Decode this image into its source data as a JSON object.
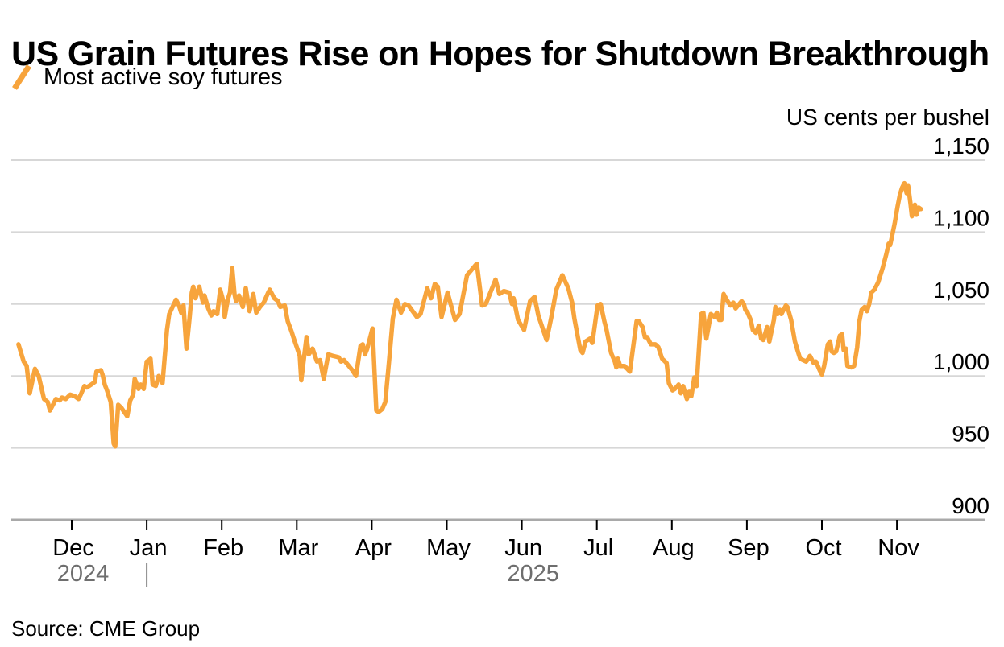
{
  "header": {
    "title": "US Grain Futures Rise on Hopes for Shutdown Breakthrough",
    "legend": {
      "label": "Most active soy futures",
      "swatch": "orange-slash-icon",
      "color": "#F7A43C"
    }
  },
  "footer": {
    "source": "Source: CME Group"
  },
  "colors": {
    "line": "#F7A43C",
    "grid": "#d7d7d7",
    "axis_baseline": "#a9a9a9",
    "year_text": "#6e6e6e",
    "text": "#000000"
  },
  "chart_data": {
    "type": "line",
    "title": "US Grain Futures Rise on Hopes for Shutdown Breakthrough",
    "ylabel": "US cents per bushel",
    "xlabel": "",
    "ylim": [
      900,
      1150
    ],
    "y_ticks": [
      1150,
      1100,
      1050,
      1000,
      950,
      900
    ],
    "grid": "horizontal",
    "legend_position": "top-left",
    "x_unit": "month offset along axis: 0 = Dec 2024 tick, 11 = Nov 2025 tick (fractional = days within month)",
    "x_tick_labels": [
      "Dec",
      "Jan",
      "Feb",
      "Mar",
      "Apr",
      "May",
      "Jun",
      "Jul",
      "Aug",
      "Sep",
      "Oct",
      "Nov"
    ],
    "x_year_labels": [
      {
        "label": "2024",
        "month_index": 0
      },
      {
        "label": "2025",
        "month_index": 6
      }
    ],
    "year_separator_month_index": 1,
    "series": [
      {
        "name": "Most active soy futures",
        "color": "#F7A43C",
        "points": [
          [
            -0.71,
            1022
          ],
          [
            -0.64,
            1010
          ],
          [
            -0.6,
            1007
          ],
          [
            -0.56,
            988
          ],
          [
            -0.49,
            1005
          ],
          [
            -0.44,
            1000
          ],
          [
            -0.37,
            984
          ],
          [
            -0.32,
            982
          ],
          [
            -0.29,
            976
          ],
          [
            -0.21,
            984
          ],
          [
            -0.16,
            983
          ],
          [
            -0.13,
            985
          ],
          [
            -0.08,
            984
          ],
          [
            -0.02,
            987
          ],
          [
            0.04,
            986
          ],
          [
            0.09,
            984
          ],
          [
            0.12,
            987
          ],
          [
            0.17,
            993
          ],
          [
            0.2,
            992
          ],
          [
            0.26,
            994
          ],
          [
            0.31,
            996
          ],
          [
            0.33,
            1003
          ],
          [
            0.39,
            1004
          ],
          [
            0.41,
            1001
          ],
          [
            0.44,
            994
          ],
          [
            0.47,
            990
          ],
          [
            0.52,
            982
          ],
          [
            0.56,
            953
          ],
          [
            0.58,
            951
          ],
          [
            0.62,
            980
          ],
          [
            0.66,
            978
          ],
          [
            0.7,
            975
          ],
          [
            0.74,
            972
          ],
          [
            0.78,
            983
          ],
          [
            0.82,
            987
          ],
          [
            0.84,
            998
          ],
          [
            0.89,
            991
          ],
          [
            0.92,
            994
          ],
          [
            0.96,
            991
          ],
          [
            1.0,
            1010
          ],
          [
            1.03,
            1011
          ],
          [
            1.05,
            1012
          ],
          [
            1.08,
            994
          ],
          [
            1.12,
            993
          ],
          [
            1.16,
            1000
          ],
          [
            1.21,
            995
          ],
          [
            1.27,
            1032
          ],
          [
            1.3,
            1043
          ],
          [
            1.39,
            1053
          ],
          [
            1.43,
            1049
          ],
          [
            1.46,
            1044
          ],
          [
            1.49,
            1049
          ],
          [
            1.53,
            1019
          ],
          [
            1.57,
            1040
          ],
          [
            1.6,
            1058
          ],
          [
            1.62,
            1062
          ],
          [
            1.65,
            1054
          ],
          [
            1.7,
            1062
          ],
          [
            1.75,
            1051
          ],
          [
            1.77,
            1056
          ],
          [
            1.82,
            1047
          ],
          [
            1.86,
            1042
          ],
          [
            1.89,
            1045
          ],
          [
            1.94,
            1043
          ],
          [
            1.98,
            1060
          ],
          [
            2.02,
            1052
          ],
          [
            2.04,
            1041
          ],
          [
            2.08,
            1053
          ],
          [
            2.11,
            1058
          ],
          [
            2.14,
            1075
          ],
          [
            2.17,
            1057
          ],
          [
            2.19,
            1052
          ],
          [
            2.23,
            1056
          ],
          [
            2.28,
            1048
          ],
          [
            2.32,
            1061
          ],
          [
            2.37,
            1045
          ],
          [
            2.42,
            1057
          ],
          [
            2.46,
            1044
          ],
          [
            2.51,
            1048
          ],
          [
            2.56,
            1051
          ],
          [
            2.62,
            1058
          ],
          [
            2.64,
            1060
          ],
          [
            2.7,
            1054
          ],
          [
            2.75,
            1052
          ],
          [
            2.78,
            1048
          ],
          [
            2.84,
            1049
          ],
          [
            2.88,
            1038
          ],
          [
            2.93,
            1031
          ],
          [
            2.96,
            1026
          ],
          [
            3.0,
            1020
          ],
          [
            3.04,
            1014
          ],
          [
            3.06,
            997
          ],
          [
            3.13,
            1027
          ],
          [
            3.16,
            1015
          ],
          [
            3.21,
            1019
          ],
          [
            3.27,
            1010
          ],
          [
            3.31,
            1011
          ],
          [
            3.36,
            998
          ],
          [
            3.42,
            1015
          ],
          [
            3.48,
            1014
          ],
          [
            3.56,
            1013
          ],
          [
            3.59,
            1010
          ],
          [
            3.63,
            1011
          ],
          [
            3.74,
            1004
          ],
          [
            3.79,
            1000
          ],
          [
            3.85,
            1021
          ],
          [
            3.88,
            1022
          ],
          [
            3.91,
            1015
          ],
          [
            3.94,
            1019
          ],
          [
            4.01,
            1033
          ],
          [
            4.06,
            976
          ],
          [
            4.09,
            975
          ],
          [
            4.14,
            977
          ],
          [
            4.18,
            982
          ],
          [
            4.23,
            1010
          ],
          [
            4.28,
            1040
          ],
          [
            4.33,
            1053
          ],
          [
            4.39,
            1044
          ],
          [
            4.44,
            1050
          ],
          [
            4.49,
            1049
          ],
          [
            4.6,
            1041
          ],
          [
            4.65,
            1043
          ],
          [
            4.74,
            1061
          ],
          [
            4.79,
            1054
          ],
          [
            4.84,
            1064
          ],
          [
            4.88,
            1062
          ],
          [
            4.93,
            1041
          ],
          [
            5.01,
            1058
          ],
          [
            5.11,
            1039
          ],
          [
            5.17,
            1043
          ],
          [
            5.27,
            1070
          ],
          [
            5.4,
            1078
          ],
          [
            5.47,
            1049
          ],
          [
            5.52,
            1050
          ],
          [
            5.65,
            1067
          ],
          [
            5.7,
            1057
          ],
          [
            5.76,
            1059
          ],
          [
            5.83,
            1058
          ],
          [
            5.87,
            1050
          ],
          [
            5.89,
            1054
          ],
          [
            5.95,
            1039
          ],
          [
            6.03,
            1032
          ],
          [
            6.11,
            1052
          ],
          [
            6.17,
            1055
          ],
          [
            6.22,
            1042
          ],
          [
            6.33,
            1025
          ],
          [
            6.39,
            1040
          ],
          [
            6.46,
            1060
          ],
          [
            6.54,
            1070
          ],
          [
            6.62,
            1061
          ],
          [
            6.67,
            1051
          ],
          [
            6.7,
            1040
          ],
          [
            6.78,
            1018
          ],
          [
            6.81,
            1016
          ],
          [
            6.85,
            1024
          ],
          [
            6.91,
            1026
          ],
          [
            6.94,
            1023
          ],
          [
            7.01,
            1049
          ],
          [
            7.05,
            1050
          ],
          [
            7.1,
            1038
          ],
          [
            7.13,
            1032
          ],
          [
            7.19,
            1016
          ],
          [
            7.24,
            1010
          ],
          [
            7.26,
            1006
          ],
          [
            7.28,
            1012
          ],
          [
            7.31,
            1007
          ],
          [
            7.37,
            1007
          ],
          [
            7.44,
            1003
          ],
          [
            7.53,
            1038
          ],
          [
            7.56,
            1038
          ],
          [
            7.61,
            1034
          ],
          [
            7.64,
            1027
          ],
          [
            7.67,
            1027
          ],
          [
            7.72,
            1022
          ],
          [
            7.78,
            1022
          ],
          [
            7.82,
            1020
          ],
          [
            7.87,
            1012
          ],
          [
            7.93,
            1009
          ],
          [
            7.96,
            995
          ],
          [
            8.01,
            990
          ],
          [
            8.04,
            991
          ],
          [
            8.09,
            994
          ],
          [
            8.12,
            988
          ],
          [
            8.15,
            993
          ],
          [
            8.2,
            984
          ],
          [
            8.23,
            989
          ],
          [
            8.26,
            986
          ],
          [
            8.3,
            999
          ],
          [
            8.33,
            993
          ],
          [
            8.39,
            1043
          ],
          [
            8.42,
            1044
          ],
          [
            8.46,
            1026
          ],
          [
            8.52,
            1043
          ],
          [
            8.57,
            1041
          ],
          [
            8.6,
            1044
          ],
          [
            8.63,
            1039
          ],
          [
            8.66,
            1039
          ],
          [
            8.69,
            1057
          ],
          [
            8.73,
            1053
          ],
          [
            8.78,
            1049
          ],
          [
            8.82,
            1051
          ],
          [
            8.85,
            1047
          ],
          [
            8.93,
            1052
          ],
          [
            8.96,
            1050
          ],
          [
            8.98,
            1046
          ],
          [
            9.01,
            1044
          ],
          [
            9.05,
            1039
          ],
          [
            9.08,
            1032
          ],
          [
            9.12,
            1030
          ],
          [
            9.16,
            1035
          ],
          [
            9.19,
            1026
          ],
          [
            9.22,
            1025
          ],
          [
            9.27,
            1034
          ],
          [
            9.3,
            1024
          ],
          [
            9.36,
            1039
          ],
          [
            9.38,
            1048
          ],
          [
            9.41,
            1043
          ],
          [
            9.44,
            1046
          ],
          [
            9.46,
            1043
          ],
          [
            9.52,
            1049
          ],
          [
            9.54,
            1048
          ],
          [
            9.59,
            1039
          ],
          [
            9.64,
            1024
          ],
          [
            9.68,
            1017
          ],
          [
            9.71,
            1012
          ],
          [
            9.75,
            1011
          ],
          [
            9.79,
            1010
          ],
          [
            9.82,
            1012
          ],
          [
            9.84,
            1014
          ],
          [
            9.89,
            1009
          ],
          [
            9.92,
            1010
          ],
          [
            9.97,
            1004
          ],
          [
            10.0,
            1001
          ],
          [
            10.03,
            1007
          ],
          [
            10.08,
            1022
          ],
          [
            10.11,
            1024
          ],
          [
            10.13,
            1017
          ],
          [
            10.16,
            1016
          ],
          [
            10.19,
            1017
          ],
          [
            10.24,
            1028
          ],
          [
            10.27,
            1029
          ],
          [
            10.29,
            1018
          ],
          [
            10.32,
            1019
          ],
          [
            10.34,
            1007
          ],
          [
            10.39,
            1006
          ],
          [
            10.43,
            1007
          ],
          [
            10.47,
            1020
          ],
          [
            10.5,
            1038
          ],
          [
            10.53,
            1046
          ],
          [
            10.57,
            1048
          ],
          [
            10.6,
            1045
          ],
          [
            10.63,
            1050
          ],
          [
            10.66,
            1058
          ],
          [
            10.7,
            1060
          ],
          [
            10.75,
            1065
          ],
          [
            10.81,
            1075
          ],
          [
            10.86,
            1085
          ],
          [
            10.89,
            1092
          ],
          [
            10.91,
            1091
          ],
          [
            10.93,
            1096
          ],
          [
            10.97,
            1106
          ],
          [
            11.01,
            1118
          ],
          [
            11.04,
            1126
          ],
          [
            11.07,
            1131
          ],
          [
            11.1,
            1134
          ],
          [
            11.13,
            1127
          ],
          [
            11.15,
            1132
          ],
          [
            11.18,
            1120
          ],
          [
            11.2,
            1111
          ],
          [
            11.24,
            1119
          ],
          [
            11.26,
            1112
          ],
          [
            11.29,
            1117
          ],
          [
            11.32,
            1116
          ]
        ]
      }
    ],
    "source": "Source: CME Group"
  }
}
